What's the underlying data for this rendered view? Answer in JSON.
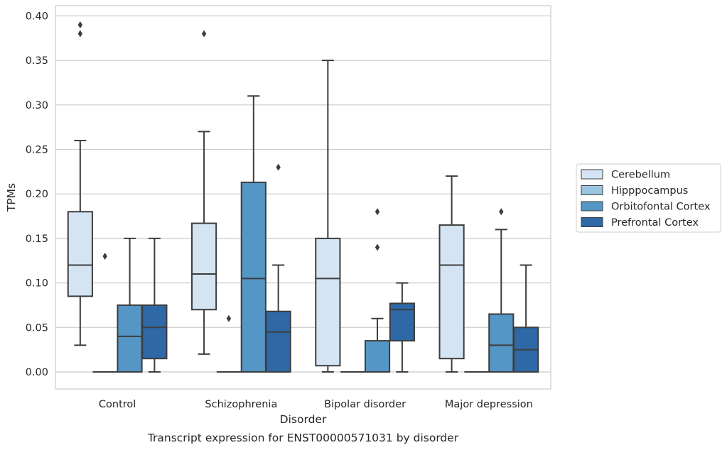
{
  "chart_data": {
    "type": "boxplot",
    "caption": "Transcript expression for ENST00000571031 by disorder",
    "xlabel": "Disorder",
    "ylabel": "TPMs",
    "ylim": [
      -0.018,
      0.41
    ],
    "yticks": [
      0.0,
      0.05,
      0.1,
      0.15,
      0.2,
      0.25,
      0.3,
      0.35,
      0.4
    ],
    "ytick_labels": [
      "0.00",
      "0.05",
      "0.10",
      "0.15",
      "0.20",
      "0.25",
      "0.30",
      "0.35",
      "0.40"
    ],
    "grid": "horizontal",
    "legend_position": "right",
    "categories": [
      "Control",
      "Schizophrenia",
      "Bipolar disorder",
      "Major depression"
    ],
    "series": [
      {
        "name": "Cerebellum",
        "color": "#d4e4f3",
        "boxes": [
          {
            "whislo": 0.03,
            "q1": 0.085,
            "med": 0.12,
            "q3": 0.18,
            "whishi": 0.26,
            "fliers": [
              0.38,
              0.39
            ]
          },
          {
            "whislo": 0.02,
            "q1": 0.07,
            "med": 0.11,
            "q3": 0.167,
            "whishi": 0.27,
            "fliers": [
              0.38
            ]
          },
          {
            "whislo": 0.0,
            "q1": 0.007,
            "med": 0.105,
            "q3": 0.15,
            "whishi": 0.35,
            "fliers": []
          },
          {
            "whislo": 0.0,
            "q1": 0.015,
            "med": 0.12,
            "q3": 0.165,
            "whishi": 0.22,
            "fliers": []
          }
        ]
      },
      {
        "name": "Hipppocampus",
        "color": "#9ac4e0",
        "boxes": [
          {
            "whislo": 0.0,
            "q1": 0.0,
            "med": 0.0,
            "q3": 0.0,
            "whishi": 0.0,
            "fliers": [
              0.13
            ]
          },
          {
            "whislo": 0.0,
            "q1": 0.0,
            "med": 0.0,
            "q3": 0.0,
            "whishi": 0.0,
            "fliers": [
              0.06
            ]
          },
          {
            "whislo": 0.0,
            "q1": 0.0,
            "med": 0.0,
            "q3": 0.0,
            "whishi": 0.0,
            "fliers": []
          },
          {
            "whislo": 0.0,
            "q1": 0.0,
            "med": 0.0,
            "q3": 0.0,
            "whishi": 0.0,
            "fliers": []
          }
        ]
      },
      {
        "name": "Orbitofontal Cortex",
        "color": "#5496c5",
        "boxes": [
          {
            "whislo": 0.0,
            "q1": 0.0,
            "med": 0.04,
            "q3": 0.075,
            "whishi": 0.15,
            "fliers": []
          },
          {
            "whislo": 0.0,
            "q1": 0.0,
            "med": 0.105,
            "q3": 0.213,
            "whishi": 0.31,
            "fliers": []
          },
          {
            "whislo": 0.0,
            "q1": 0.0,
            "med": 0.0,
            "q3": 0.035,
            "whishi": 0.06,
            "fliers": [
              0.14,
              0.18
            ]
          },
          {
            "whislo": 0.0,
            "q1": 0.0,
            "med": 0.03,
            "q3": 0.065,
            "whishi": 0.16,
            "fliers": [
              0.18
            ]
          }
        ]
      },
      {
        "name": "Prefrontal Cortex",
        "color": "#2e68a6",
        "boxes": [
          {
            "whislo": 0.0,
            "q1": 0.015,
            "med": 0.05,
            "q3": 0.075,
            "whishi": 0.15,
            "fliers": []
          },
          {
            "whislo": 0.0,
            "q1": 0.0,
            "med": 0.045,
            "q3": 0.068,
            "whishi": 0.12,
            "fliers": [
              0.23
            ]
          },
          {
            "whislo": 0.0,
            "q1": 0.035,
            "med": 0.07,
            "q3": 0.077,
            "whishi": 0.1,
            "fliers": []
          },
          {
            "whislo": 0.0,
            "q1": 0.0,
            "med": 0.025,
            "q3": 0.05,
            "whishi": 0.12,
            "fliers": []
          }
        ]
      }
    ]
  }
}
